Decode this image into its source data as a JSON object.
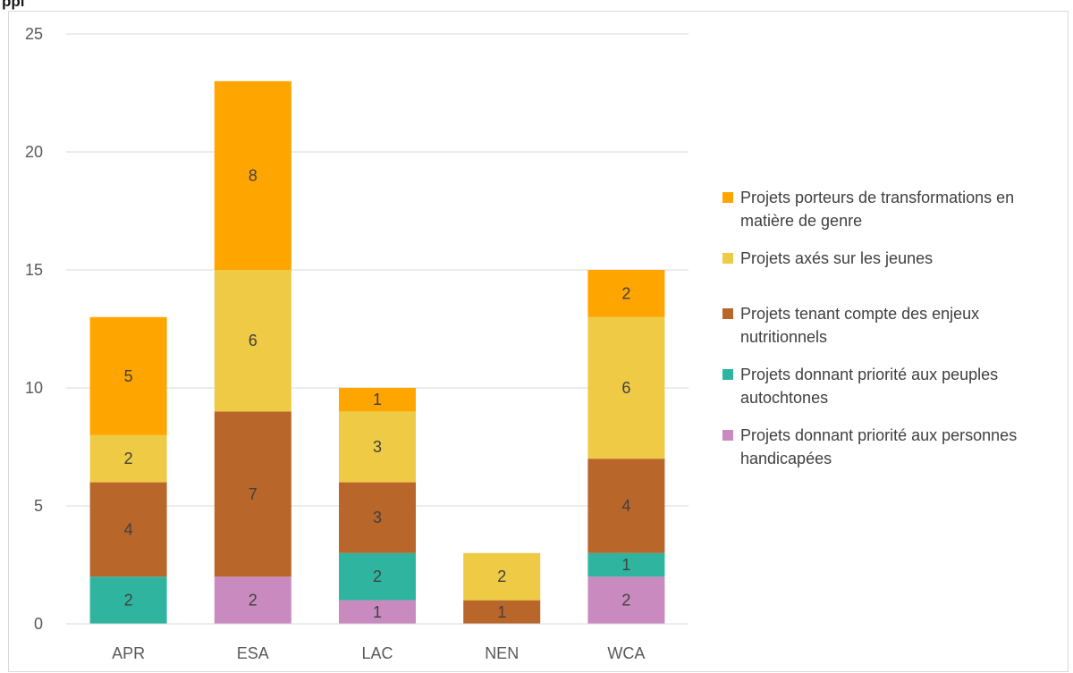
{
  "chart_data": {
    "type": "bar",
    "stacked": true,
    "title": "",
    "xlabel": "",
    "ylabel": "",
    "ylim": [
      0,
      25
    ],
    "yticks": [
      0,
      5,
      10,
      15,
      20,
      25
    ],
    "grid": true,
    "legend_position": "right",
    "categories": [
      "APR",
      "ESA",
      "LAC",
      "NEN",
      "WCA"
    ],
    "series": [
      {
        "name": "Projets donnant priorité aux personnes handicapées",
        "color": "#c98bbf",
        "values": [
          0,
          2,
          1,
          0,
          2
        ]
      },
      {
        "name": "Projets donnant priorité aux peuples autochtones",
        "color": "#2fb59f",
        "values": [
          2,
          0,
          2,
          0,
          1
        ]
      },
      {
        "name": "Projets tenant compte des enjeux nutritionnels",
        "color": "#b8662a",
        "values": [
          4,
          7,
          3,
          1,
          4
        ]
      },
      {
        "name": "Projets axés sur les jeunes",
        "color": "#efca45",
        "values": [
          2,
          6,
          3,
          2,
          6
        ]
      },
      {
        "name": "Projets porteurs de transformations en matière de genre",
        "color": "#ffa500",
        "values": [
          5,
          8,
          1,
          0,
          2
        ]
      }
    ]
  },
  "legend": [
    {
      "label": "Projets porteurs de transformations en matière de genre",
      "color": "#ffa500"
    },
    {
      "label": "Projets axés sur les jeunes",
      "color": "#efca45"
    },
    {
      "label": "Projets tenant compte des enjeux nutritionnels",
      "color": "#b8662a"
    },
    {
      "label": "Projets donnant priorité aux peuples autochtones",
      "color": "#2fb59f"
    },
    {
      "label": "Projets donnant priorité aux personnes handicapées",
      "color": "#c98bbf"
    }
  ],
  "header_fragment": "ppl"
}
